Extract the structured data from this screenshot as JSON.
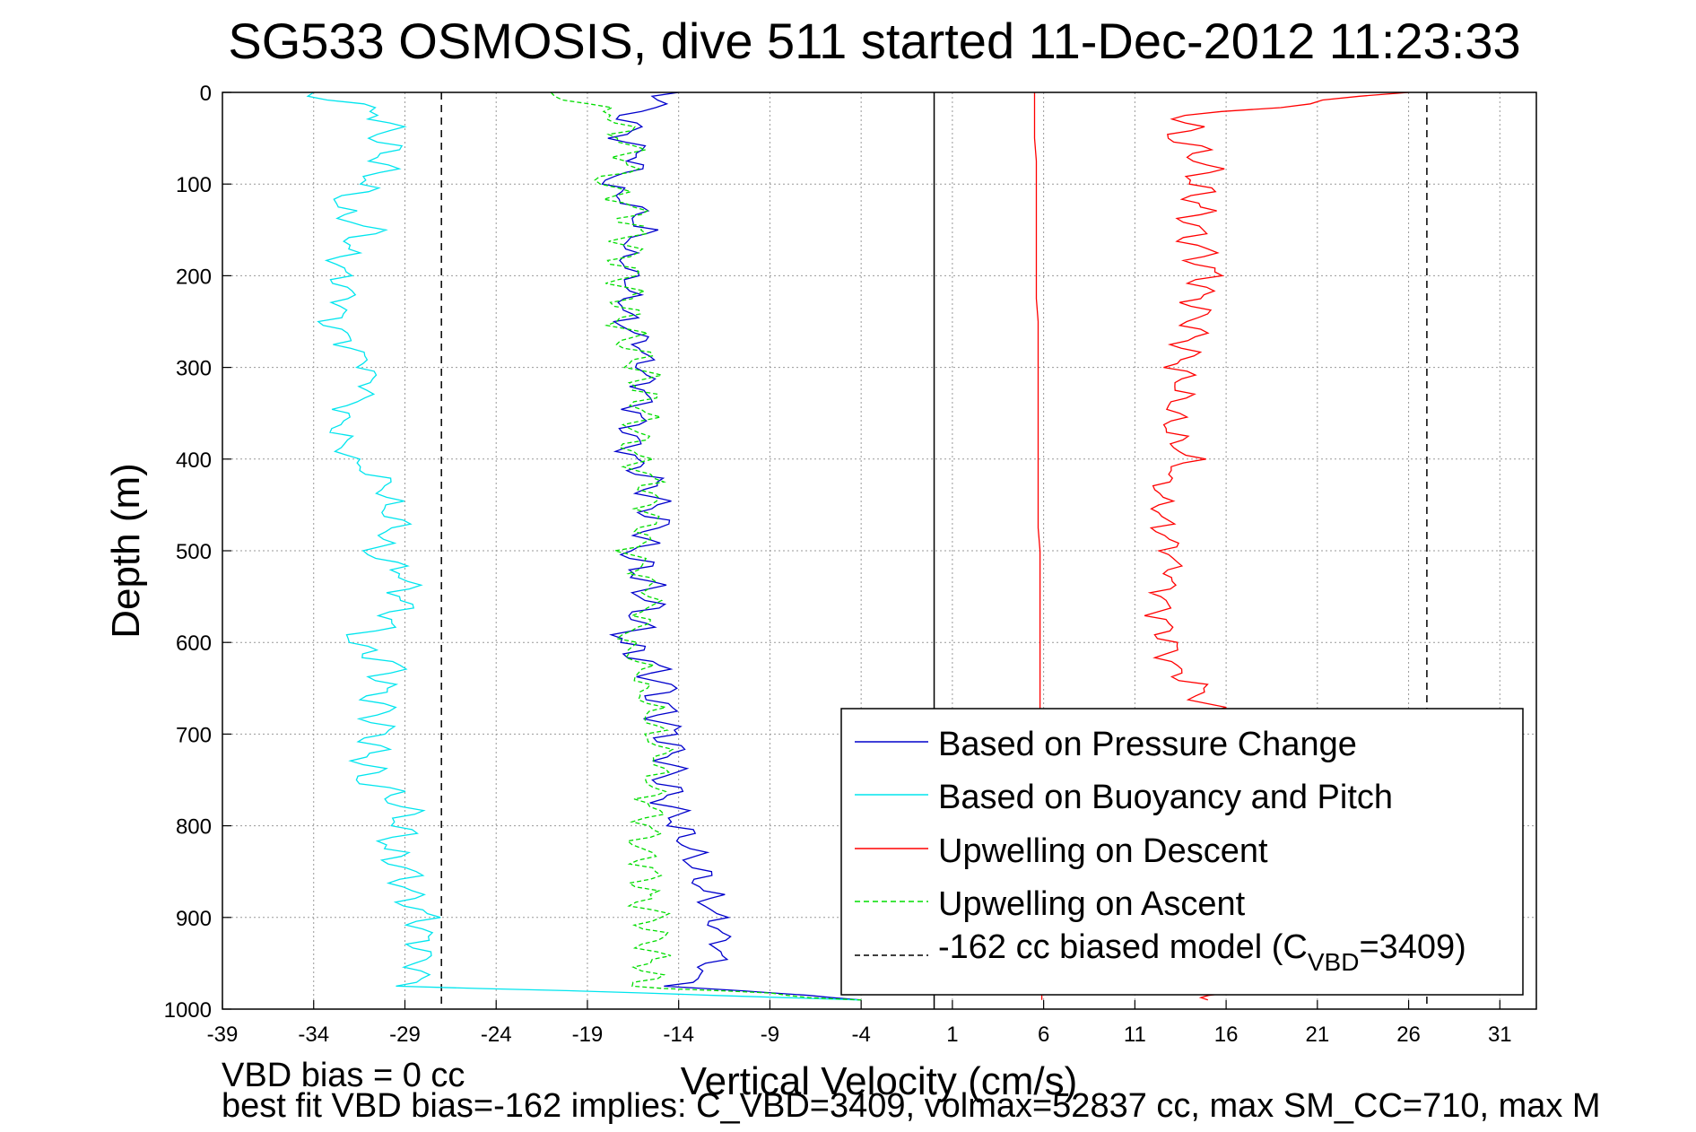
{
  "chart_data": {
    "type": "line",
    "title": "SG533 OSMOSIS, dive 511 started 11-Dec-2012 11:23:33",
    "xlabel": "Vertical Velocity (cm/s)",
    "ylabel": "Depth (m)",
    "xlim": [
      -39,
      33
    ],
    "ylim": [
      0,
      1000
    ],
    "y_reversed": true,
    "x_ticks": [
      -39,
      -34,
      -29,
      -24,
      -19,
      -14,
      -9,
      -4,
      1,
      6,
      11,
      16,
      21,
      26,
      31
    ],
    "y_ticks": [
      0,
      100,
      200,
      300,
      400,
      500,
      600,
      700,
      800,
      900,
      1000
    ],
    "grid": true,
    "legend_position": "bottom-right",
    "reference_lines": [
      {
        "x": -27,
        "style": "dashed",
        "color": "#000000"
      },
      {
        "x": 0,
        "style": "solid",
        "color": "#000000"
      },
      {
        "x": 27,
        "style": "dashed",
        "color": "#000000"
      }
    ],
    "depth": [
      0,
      25,
      50,
      75,
      100,
      125,
      150,
      175,
      200,
      225,
      250,
      275,
      300,
      325,
      350,
      375,
      400,
      425,
      450,
      475,
      500,
      525,
      550,
      575,
      600,
      625,
      650,
      675,
      700,
      725,
      750,
      775,
      800,
      825,
      850,
      875,
      900,
      925,
      950,
      975,
      990
    ],
    "series": [
      {
        "name": "Based on Pressure Change",
        "color": "#0000cc",
        "style": "solid",
        "values": [
          -14,
          -16.5,
          -16.8,
          -16,
          -18,
          -16.5,
          -16,
          -17,
          -16.5,
          -16.8,
          -17,
          -16,
          -16,
          -15.8,
          -16.2,
          -16.5,
          -16.5,
          -15.5,
          -15.5,
          -15.3,
          -16.5,
          -16,
          -15.5,
          -16,
          -17,
          -15.5,
          -15,
          -15,
          -14.5,
          -14.3,
          -14.5,
          -14.5,
          -14,
          -13.5,
          -13,
          -12.5,
          -12,
          -11.5,
          -12,
          -14,
          -4
        ]
      },
      {
        "name": "Based on Buoyancy and Pitch",
        "color": "#00e5ee",
        "style": "solid",
        "values": [
          -34,
          -30,
          -30,
          -30,
          -31,
          -33,
          -31,
          -32.5,
          -32.5,
          -32,
          -33,
          -32,
          -31,
          -31,
          -32.5,
          -32.5,
          -32,
          -30,
          -30,
          -29.5,
          -31,
          -29,
          -29,
          -29.5,
          -32,
          -29.5,
          -30.5,
          -30.5,
          -30.5,
          -31,
          -31,
          -29,
          -29,
          -30,
          -29,
          -29,
          -28,
          -28,
          -28,
          -28.5,
          -4
        ]
      },
      {
        "name": "Upwelling on Descent",
        "color": "#ff0000",
        "style": "solid",
        "values": [
          26,
          14,
          13.5,
          15,
          14.5,
          14.5,
          14,
          14.5,
          15,
          14.5,
          14.5,
          14,
          13.5,
          13.5,
          13,
          13,
          14,
          12.5,
          12.5,
          12.5,
          13,
          13,
          12.5,
          12.5,
          13,
          13,
          14.5,
          15,
          15.2,
          15.3,
          15.3,
          15.3,
          15.5,
          15.5,
          15.5,
          15.5,
          15.5,
          15.5,
          15.5,
          15.5,
          15
        ]
      },
      {
        "name": "Upwelling on Ascent",
        "color": "#00dd00",
        "style": "dashed",
        "values": [
          -21,
          -17.5,
          -17,
          -16.5,
          -18,
          -16.5,
          -16.5,
          -17,
          -17,
          -16.8,
          -17,
          -16.5,
          -16,
          -16,
          -16,
          -16.5,
          -16.5,
          -15.5,
          -15.5,
          -15.5,
          -16.5,
          -16,
          -15.5,
          -16,
          -17,
          -16,
          -16,
          -15.5,
          -15.5,
          -15,
          -15.5,
          -15.5,
          -15.5,
          -16,
          -15.5,
          -16,
          -15.5,
          -15.5,
          -15.5,
          -16,
          -4
        ]
      },
      {
        "name": "-162 cc biased model",
        "color": "#000000",
        "style": "dashed",
        "values": [
          5.5,
          5.5,
          5.5,
          5.6,
          5.6,
          5.6,
          5.6,
          5.6,
          5.6,
          5.6,
          5.7,
          5.7,
          5.7,
          5.7,
          5.7,
          5.7,
          5.7,
          5.7,
          5.7,
          5.7,
          5.8,
          5.8,
          5.8,
          5.8,
          5.8,
          5.8,
          5.8,
          5.8,
          5.8,
          5.8,
          5.8,
          5.8,
          5.8,
          5.8,
          5.8,
          5.9,
          5.9,
          5.9,
          5.9,
          5.9,
          5.9
        ]
      }
    ],
    "model_line_color": "#ff0000",
    "legend_labels": [
      "Based on Pressure Change",
      "Based on Buoyancy and Pitch",
      "Upwelling on Descent",
      "Upwelling on Ascent",
      "-162 cc biased model (C",
      "VBD",
      "=3409)"
    ]
  },
  "annotations": {
    "line1": "VBD bias = 0 cc",
    "line2": "best fit VBD bias=-162 implies: C_VBD=3409, volmax=52837 cc, max SM_CC=710, max M"
  }
}
